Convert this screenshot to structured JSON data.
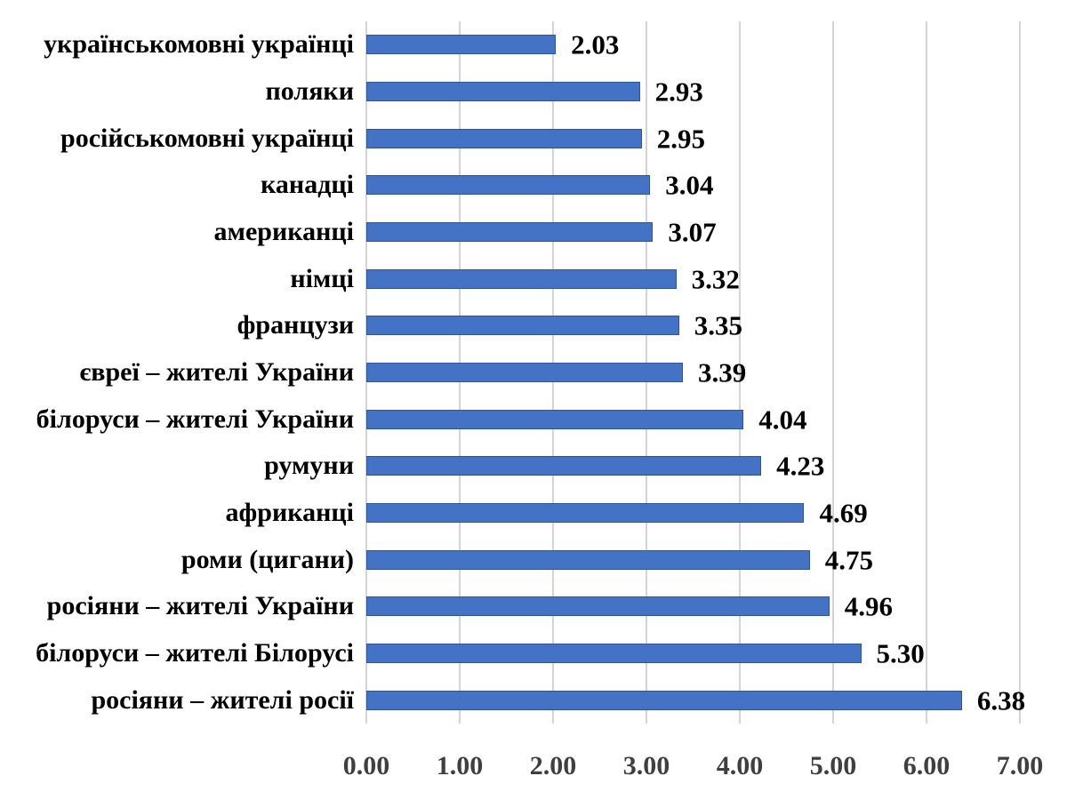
{
  "chart_data": {
    "type": "bar",
    "orientation": "horizontal",
    "title": "",
    "xlabel": "",
    "ylabel": "",
    "categories": [
      "українськомовні українці",
      "поляки",
      "російськомовні українці",
      "канадці",
      "американці",
      "німці",
      "французи",
      "євреї – жителі України",
      "білоруси – жителі України",
      "румуни",
      "африканці",
      "роми (цигани)",
      "росіяни – жителі України",
      "білоруси – жителі Білорусі",
      "росіяни – жителі росії"
    ],
    "values": [
      2.03,
      2.93,
      2.95,
      3.04,
      3.07,
      3.32,
      3.35,
      3.39,
      4.04,
      4.23,
      4.69,
      4.75,
      4.96,
      5.3,
      6.38
    ],
    "value_labels": [
      "2.03",
      "2.93",
      "2.95",
      "3.04",
      "3.07",
      "3.32",
      "3.35",
      "3.39",
      "4.04",
      "4.23",
      "4.69",
      "4.75",
      "4.96",
      "5.30",
      "6.38"
    ],
    "x_ticks": [
      "0.00",
      "1.00",
      "2.00",
      "3.00",
      "4.00",
      "5.00",
      "6.00",
      "7.00"
    ],
    "xlim": [
      0,
      7
    ],
    "grid": "vertical",
    "legend": "none",
    "colors": {
      "bar_fill": "#4472C4",
      "bar_border": "#2F5597",
      "gridline": "#D4D4D4",
      "tick_text": "#3F3F3F",
      "label_text": "#000000"
    }
  }
}
